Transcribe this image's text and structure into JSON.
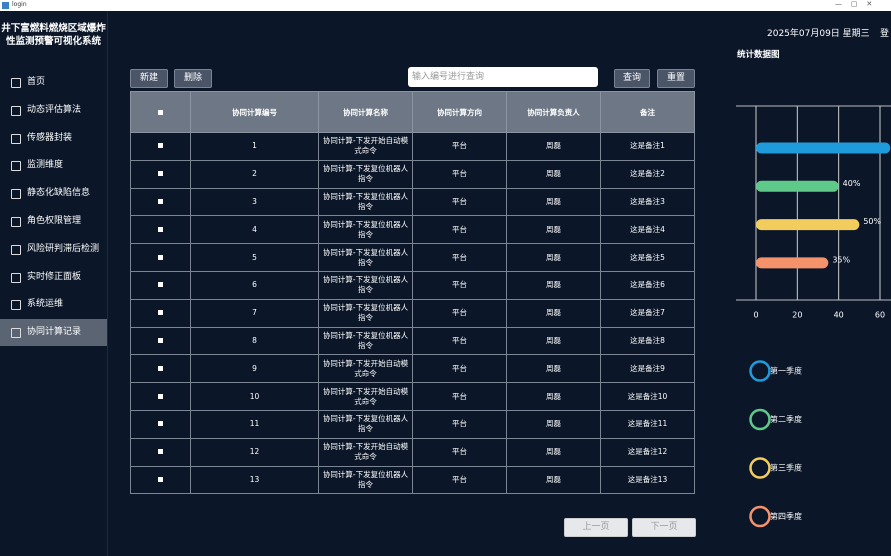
{
  "window": {
    "title": "login"
  },
  "sidebar": {
    "title": [
      "井下富燃料燃烧区域爆炸",
      "性监测预警可视化系统"
    ],
    "menu": [
      "首页",
      "动态评估算法",
      "传感器封装",
      "监测维度",
      "静态化缺陷信息",
      "角色权限管理",
      "风险研判滞后检测",
      "实时修正面板",
      "系统运维",
      "协同计算记录"
    ],
    "active": 9
  },
  "header": {
    "date": "2025年07月09日 星期三",
    "login": "登"
  },
  "toolbar": {
    "new": "新建",
    "delete": "删除",
    "search_placeholder": "输入编号进行查询",
    "query": "查询",
    "reset": "重置"
  },
  "table": {
    "headers": [
      "协同计算编号",
      "协同计算名称",
      "协同计算方向",
      "协同计算负责人",
      "备注"
    ],
    "rows": [
      [
        "1",
        "协同计算-下发开始自动模式命令",
        "平台",
        "周磊",
        "这是备注1"
      ],
      [
        "2",
        "协同计算-下发复位机器人指令",
        "平台",
        "周磊",
        "这是备注2"
      ],
      [
        "3",
        "协同计算-下发复位机器人指令",
        "平台",
        "周磊",
        "这是备注3"
      ],
      [
        "4",
        "协同计算-下发复位机器人指令",
        "平台",
        "周磊",
        "这是备注4"
      ],
      [
        "5",
        "协同计算-下发复位机器人指令",
        "平台",
        "周磊",
        "这是备注5"
      ],
      [
        "6",
        "协同计算-下发复位机器人指令",
        "平台",
        "周磊",
        "这是备注6"
      ],
      [
        "7",
        "协同计算-下发复位机器人指令",
        "平台",
        "周磊",
        "这是备注7"
      ],
      [
        "8",
        "协同计算-下发复位机器人指令",
        "平台",
        "周磊",
        "这是备注8"
      ],
      [
        "9",
        "协同计算-下发开始自动模式命令",
        "平台",
        "周磊",
        "这是备注9"
      ],
      [
        "10",
        "协同计算-下发开始自动模式命令",
        "平台",
        "周磊",
        "这是备注10"
      ],
      [
        "11",
        "协同计算-下发复位机器人指令",
        "平台",
        "周磊",
        "这是备注11"
      ],
      [
        "12",
        "协同计算-下发开始自动模式命令",
        "平台",
        "周磊",
        "这是备注12"
      ],
      [
        "13",
        "协同计算-下发复位机器人指令",
        "平台",
        "周磊",
        "这是备注13"
      ]
    ]
  },
  "pagination": {
    "prev": "上一页",
    "next": "下一页"
  },
  "chart": {
    "type": "bar",
    "title": "统计数据图",
    "categories": [
      "第一季度",
      "第二季度",
      "第三季度",
      "第四季度"
    ],
    "values": [
      65,
      40,
      50,
      35
    ],
    "value_labels": [
      null,
      "40%",
      "50%",
      "35%"
    ],
    "colors": [
      "#1f9bdc",
      "#5fc98a",
      "#f2cc5c",
      "#f4926b"
    ],
    "xlim": [
      0,
      60
    ],
    "xticks": [
      0,
      20,
      40,
      60
    ],
    "grid": true
  }
}
